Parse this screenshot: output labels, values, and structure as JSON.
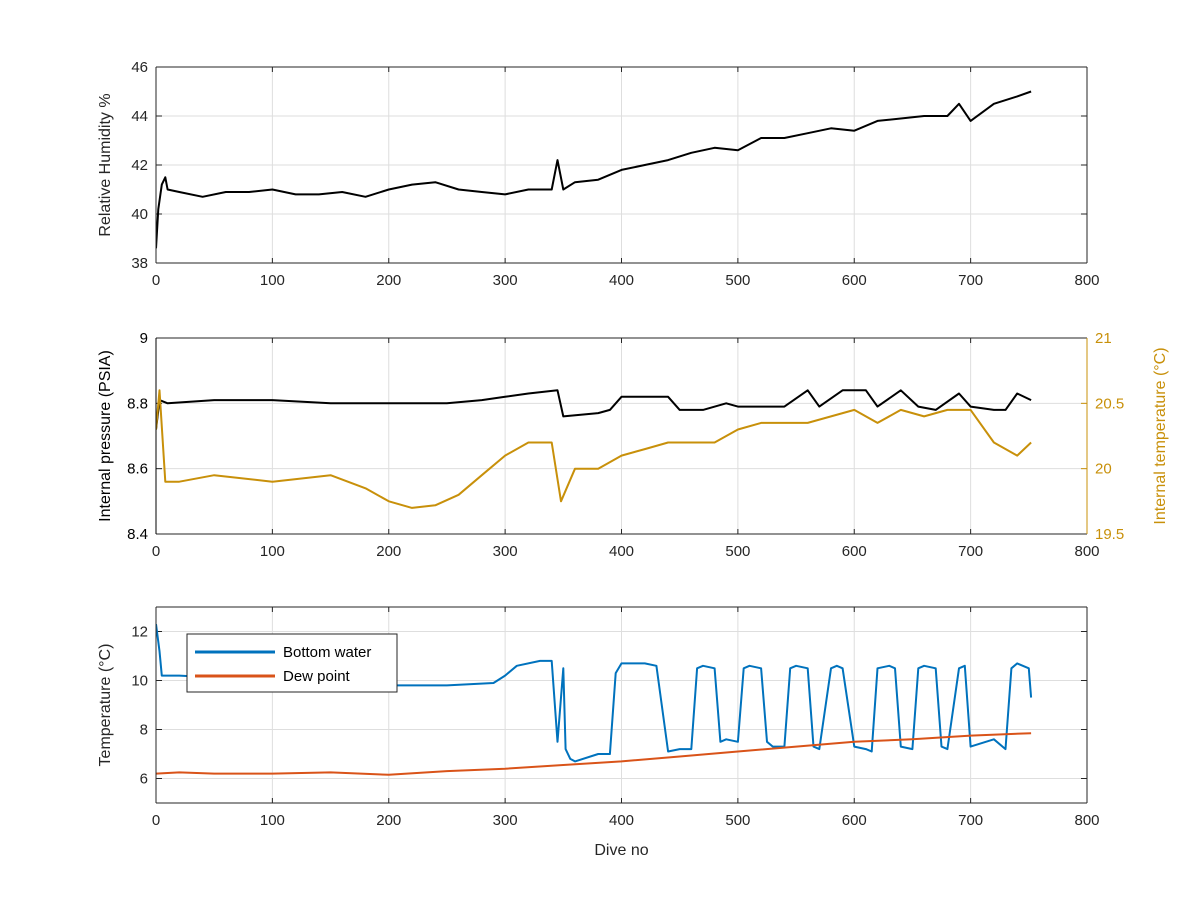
{
  "chart_data": [
    {
      "type": "line",
      "ylabel": "Relative Humidity %",
      "xlabel": "",
      "xlim": [
        0,
        800
      ],
      "ylim": [
        38,
        46
      ],
      "xticks": [
        "0",
        "100",
        "200",
        "300",
        "400",
        "500",
        "600",
        "700",
        "800"
      ],
      "yticks": [
        "38",
        "40",
        "42",
        "44",
        "46"
      ],
      "grid": true,
      "series": [
        {
          "color": "#000000",
          "x": [
            0,
            2,
            5,
            8,
            10,
            20,
            40,
            60,
            80,
            100,
            120,
            140,
            160,
            180,
            200,
            220,
            240,
            260,
            280,
            300,
            320,
            340,
            345,
            350,
            360,
            380,
            400,
            420,
            440,
            460,
            480,
            500,
            520,
            540,
            560,
            580,
            600,
            620,
            640,
            660,
            680,
            690,
            700,
            720,
            740,
            752
          ],
          "y": [
            38.6,
            40.2,
            41.2,
            41.5,
            41.0,
            40.9,
            40.7,
            40.9,
            40.9,
            41.0,
            40.8,
            40.8,
            40.9,
            40.7,
            41.0,
            41.2,
            41.3,
            41.0,
            40.9,
            40.8,
            41.0,
            41.0,
            42.2,
            41.0,
            41.3,
            41.4,
            41.8,
            42.0,
            42.2,
            42.5,
            42.7,
            42.6,
            43.1,
            43.1,
            43.3,
            43.5,
            43.4,
            43.8,
            43.9,
            44.0,
            44.0,
            44.5,
            43.8,
            44.5,
            44.8,
            45.0
          ]
        }
      ]
    },
    {
      "type": "line",
      "ylabel": "Internal pressure (PSIA)",
      "y2label": "Internal temperature (°C)",
      "xlabel": "",
      "xlim": [
        0,
        800
      ],
      "ylim": [
        8.4,
        9
      ],
      "y2lim": [
        19.5,
        21
      ],
      "xticks": [
        "0",
        "100",
        "200",
        "300",
        "400",
        "500",
        "600",
        "700",
        "800"
      ],
      "yticks": [
        "8.4",
        "8.6",
        "8.8",
        "9"
      ],
      "y2ticks": [
        "19.5",
        "20",
        "20.5",
        "21"
      ],
      "grid": true,
      "right_axis_color": "#c8900a",
      "series": [
        {
          "axis": "left",
          "color": "#000000",
          "x": [
            0,
            3,
            10,
            50,
            100,
            150,
            200,
            250,
            280,
            300,
            320,
            345,
            350,
            380,
            390,
            400,
            440,
            450,
            470,
            490,
            500,
            540,
            560,
            570,
            590,
            610,
            620,
            640,
            655,
            670,
            690,
            700,
            720,
            730,
            740,
            752
          ],
          "y": [
            8.72,
            8.81,
            8.8,
            8.81,
            8.81,
            8.8,
            8.8,
            8.8,
            8.81,
            8.82,
            8.83,
            8.84,
            8.76,
            8.77,
            8.78,
            8.82,
            8.82,
            8.78,
            8.78,
            8.8,
            8.79,
            8.79,
            8.84,
            8.79,
            8.84,
            8.84,
            8.79,
            8.84,
            8.79,
            8.78,
            8.83,
            8.79,
            8.78,
            8.78,
            8.83,
            8.81
          ]
        },
        {
          "axis": "right",
          "color": "#c8900a",
          "x": [
            0,
            3,
            8,
            20,
            50,
            100,
            150,
            180,
            200,
            220,
            240,
            260,
            280,
            300,
            320,
            340,
            348,
            360,
            380,
            400,
            420,
            440,
            460,
            480,
            500,
            520,
            540,
            560,
            580,
            600,
            620,
            640,
            660,
            680,
            700,
            720,
            740,
            752
          ],
          "y": [
            20.3,
            20.6,
            19.9,
            19.9,
            19.95,
            19.9,
            19.95,
            19.85,
            19.75,
            19.7,
            19.72,
            19.8,
            19.95,
            20.1,
            20.2,
            20.2,
            19.75,
            20.0,
            20.0,
            20.1,
            20.15,
            20.2,
            20.2,
            20.2,
            20.3,
            20.35,
            20.35,
            20.35,
            20.4,
            20.45,
            20.35,
            20.45,
            20.4,
            20.45,
            20.45,
            20.2,
            20.1,
            20.2
          ]
        }
      ]
    },
    {
      "type": "line",
      "ylabel": "Temperature (°C)",
      "xlabel": "Dive no",
      "xlim": [
        0,
        800
      ],
      "ylim": [
        5,
        13
      ],
      "xticks": [
        "0",
        "100",
        "200",
        "300",
        "400",
        "500",
        "600",
        "700",
        "800"
      ],
      "yticks": [
        "6",
        "8",
        "10",
        "12"
      ],
      "grid": true,
      "legend_position": "top-left",
      "series": [
        {
          "name": "Bottom water",
          "color": "#0072bd",
          "x": [
            0,
            3,
            5,
            20,
            100,
            200,
            250,
            290,
            300,
            310,
            330,
            340,
            345,
            350,
            352,
            356,
            360,
            380,
            390,
            395,
            400,
            420,
            430,
            440,
            450,
            460,
            465,
            470,
            480,
            485,
            490,
            500,
            505,
            510,
            520,
            525,
            530,
            540,
            545,
            550,
            560,
            565,
            570,
            580,
            585,
            590,
            600,
            610,
            615,
            620,
            630,
            635,
            640,
            650,
            655,
            660,
            670,
            675,
            680,
            690,
            695,
            700,
            720,
            730,
            735,
            740,
            750,
            752
          ],
          "y": [
            12.3,
            11.2,
            10.2,
            10.2,
            10.0,
            9.8,
            9.8,
            9.9,
            10.2,
            10.6,
            10.8,
            10.8,
            7.5,
            10.5,
            7.2,
            6.8,
            6.7,
            7.0,
            7.0,
            10.3,
            10.7,
            10.7,
            10.6,
            7.1,
            7.2,
            7.2,
            10.5,
            10.6,
            10.5,
            7.5,
            7.6,
            7.5,
            10.5,
            10.6,
            10.5,
            7.5,
            7.3,
            7.3,
            10.5,
            10.6,
            10.5,
            7.3,
            7.2,
            10.5,
            10.6,
            10.5,
            7.3,
            7.2,
            7.1,
            10.5,
            10.6,
            10.5,
            7.3,
            7.2,
            10.5,
            10.6,
            10.5,
            7.3,
            7.2,
            10.5,
            10.6,
            7.3,
            7.6,
            7.2,
            10.5,
            10.7,
            10.5,
            9.3
          ]
        },
        {
          "name": "Dew point",
          "color": "#d95319",
          "x": [
            0,
            20,
            50,
            100,
            150,
            200,
            250,
            300,
            350,
            400,
            450,
            500,
            550,
            600,
            650,
            700,
            752
          ],
          "y": [
            6.2,
            6.25,
            6.2,
            6.2,
            6.25,
            6.15,
            6.3,
            6.4,
            6.55,
            6.7,
            6.9,
            7.1,
            7.3,
            7.5,
            7.6,
            7.75,
            7.85
          ]
        }
      ]
    }
  ]
}
